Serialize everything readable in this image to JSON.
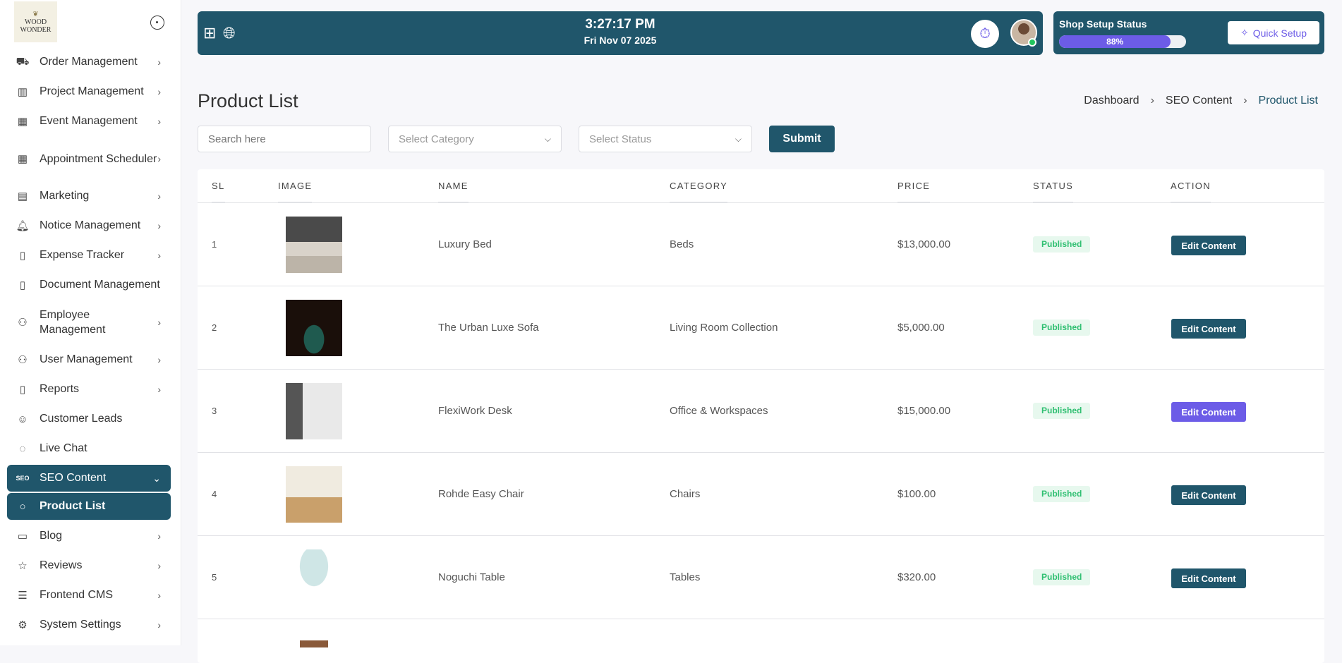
{
  "brand": {
    "logo_line1": "WOOD",
    "logo_line2": "WONDER"
  },
  "sidebar": {
    "items": [
      {
        "label": "Order Management",
        "icon": "truck-icon",
        "glyph": "⛟",
        "chev": "›"
      },
      {
        "label": "Project Management",
        "icon": "building-icon",
        "glyph": "▥",
        "chev": "›"
      },
      {
        "label": "Event Management",
        "icon": "calendar-icon",
        "glyph": "▦",
        "chev": "›"
      },
      {
        "label": "Appointment Scheduler",
        "icon": "calendar-icon",
        "glyph": "▦",
        "chev": "›",
        "tall": true
      },
      {
        "label": "Marketing",
        "icon": "document-icon",
        "glyph": "▤",
        "chev": "›"
      },
      {
        "label": "Notice Management",
        "icon": "bell-icon",
        "glyph": "🔔︎",
        "chev": "›"
      },
      {
        "label": "Expense Tracker",
        "icon": "receipt-icon",
        "glyph": "▯",
        "chev": "›"
      },
      {
        "label": "Document Management",
        "icon": "file-icon",
        "glyph": "▯",
        "chev": ""
      },
      {
        "label": "Employee Management",
        "icon": "users-icon",
        "glyph": "⚇",
        "chev": "›",
        "tall": true
      },
      {
        "label": "User Management",
        "icon": "users-icon",
        "glyph": "⚇",
        "chev": "›"
      },
      {
        "label": "Reports",
        "icon": "clipboard-icon",
        "glyph": "▯",
        "chev": "›"
      },
      {
        "label": "Customer Leads",
        "icon": "user-icon",
        "glyph": "☺",
        "chev": ""
      },
      {
        "label": "Live Chat",
        "icon": "chat-icon",
        "glyph": "◌",
        "chev": ""
      },
      {
        "label": "SEO Content",
        "icon": "seo-icon",
        "glyph": "SEO",
        "chev": "⌄",
        "active": true
      },
      {
        "label": "Product List",
        "icon": "circle-icon",
        "glyph": "○",
        "chev": "",
        "active": true,
        "sub": true
      },
      {
        "label": "Blog",
        "icon": "presentation-icon",
        "glyph": "▭",
        "chev": "›"
      },
      {
        "label": "Reviews",
        "icon": "star-icon",
        "glyph": "☆",
        "chev": "›"
      },
      {
        "label": "Frontend CMS",
        "icon": "sliders-icon",
        "glyph": "☰",
        "chev": "›"
      },
      {
        "label": "System Settings",
        "icon": "gear-icon",
        "glyph": "⚙",
        "chev": "›"
      }
    ]
  },
  "topbar": {
    "time": "3:27:17 PM",
    "date": "Fri Nov 07 2025"
  },
  "shop_status": {
    "title": "Shop Setup Status",
    "progress_percent": 88,
    "progress_label": "88%",
    "quick_setup": "Quick Setup"
  },
  "page": {
    "title": "Product List",
    "breadcrumb": [
      "Dashboard",
      "SEO Content",
      "Product List"
    ]
  },
  "filters": {
    "search_placeholder": "Search here",
    "category_placeholder": "Select Category",
    "status_placeholder": "Select Status",
    "submit": "Submit"
  },
  "table": {
    "headers": [
      "SL",
      "IMAGE",
      "NAME",
      "CATEGORY",
      "PRICE",
      "STATUS",
      "ACTION"
    ],
    "rows": [
      {
        "sl": "1",
        "name": "Luxury Bed",
        "category": "Beds",
        "price": "$13,000.00",
        "status": "Published",
        "action": "Edit Content"
      },
      {
        "sl": "2",
        "name": "The Urban Luxe Sofa",
        "category": "Living Room Collection",
        "price": "$5,000.00",
        "status": "Published",
        "action": "Edit Content"
      },
      {
        "sl": "3",
        "name": "FlexiWork Desk",
        "category": "Office & Workspaces",
        "price": "$15,000.00",
        "status": "Published",
        "action": "Edit Content",
        "hover": true
      },
      {
        "sl": "4",
        "name": "Rohde Easy Chair",
        "category": "Chairs",
        "price": "$100.00",
        "status": "Published",
        "action": "Edit Content"
      },
      {
        "sl": "5",
        "name": "Noguchi Table",
        "category": "Tables",
        "price": "$320.00",
        "status": "Published",
        "action": "Edit Content"
      }
    ]
  },
  "colors": {
    "primary": "#20566b",
    "accent": "#6c5ce7",
    "published_text": "#2fbf71",
    "published_bg": "#e7f8ee"
  }
}
